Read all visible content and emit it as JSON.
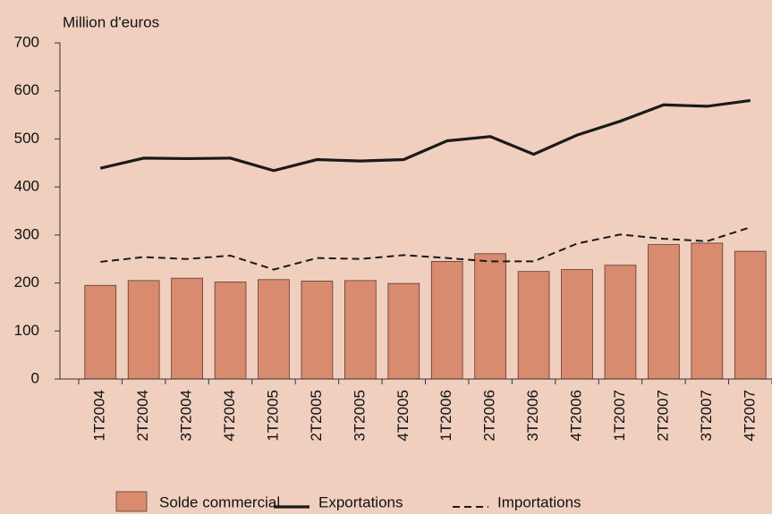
{
  "chart_data": {
    "type": "bar_line",
    "y_label": "Million d'euros",
    "categories": [
      "1T2004",
      "2T2004",
      "3T2004",
      "4T2004",
      "1T2005",
      "2T2005",
      "3T2005",
      "4T2005",
      "1T2006",
      "2T2006",
      "3T2006",
      "4T2006",
      "1T2007",
      "2T2007",
      "3T2007",
      "4T2007"
    ],
    "series": [
      {
        "name": "Solde commercial",
        "type": "bar",
        "color": "#d98b6f",
        "values": [
          195,
          205,
          210,
          202,
          207,
          204,
          205,
          199,
          245,
          261,
          224,
          228,
          237,
          280,
          283,
          266
        ]
      },
      {
        "name": "Exportations",
        "type": "line",
        "color": "#1a1a1a",
        "dash": "solid",
        "values": [
          439,
          460,
          459,
          460,
          434,
          457,
          454,
          457,
          496,
          505,
          468,
          508,
          537,
          571,
          568,
          580
        ]
      },
      {
        "name": "Importations",
        "type": "line",
        "color": "#1a1a1a",
        "dash": "dashed",
        "values": [
          244,
          254,
          250,
          257,
          228,
          252,
          250,
          258,
          252,
          245,
          245,
          282,
          301,
          292,
          287,
          316
        ]
      }
    ],
    "ylim": [
      0,
      700
    ],
    "yticks": [
      0,
      100,
      200,
      300,
      400,
      500,
      600,
      700
    ]
  }
}
